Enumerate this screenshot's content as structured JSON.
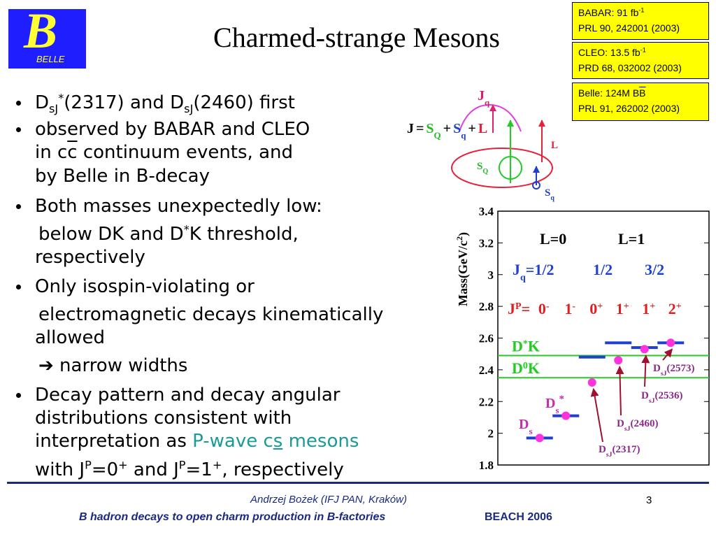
{
  "logo": {
    "letter": "B",
    "name": "BELLE"
  },
  "title": "Charmed-strange Mesons",
  "references": [
    {
      "line1": [
        "BABAR: 91 fb",
        "-1"
      ],
      "line2": "PRL 90, 242001 (2003)"
    },
    {
      "line1": [
        "CLEO: 13.5 fb",
        "-1"
      ],
      "line2": "PRD 68, 032002 (2003)"
    },
    {
      "line1": [
        "Belle: 124M B",
        "B"
      ],
      "line2": "PRL 91, 262002 (2003)"
    }
  ],
  "bullets": [
    [
      "D",
      "sJ",
      "*",
      "(2317) and D",
      "sJ",
      "(2460) first"
    ],
    [
      "observed by BABAR and CLEO"
    ],
    [
      "in c",
      "c",
      " continuum events, and"
    ],
    [
      "by Belle in B-decay"
    ],
    [
      "Both masses unexpectedly low:"
    ],
    [
      "below DK and D",
      "*",
      "K threshold,"
    ],
    [
      "respectively"
    ],
    [
      "Only isospin-violating or"
    ],
    [
      "electromagnetic decays kinematically"
    ],
    [
      "allowed"
    ],
    [
      "➔ narrow widths"
    ],
    [
      "Decay pattern and decay angular"
    ],
    [
      "distributions consistent with"
    ],
    [
      "interpretation as ",
      "P-wave c",
      "s",
      " mesons"
    ],
    [
      "with J",
      "P",
      "=0",
      "+",
      " and J",
      "P",
      "=1",
      "+",
      ", respectively"
    ]
  ],
  "spin_diagram": {
    "jq": [
      "J",
      "q"
    ],
    "equation": [
      "J",
      "=",
      "S",
      "Q",
      "+",
      "S",
      "q",
      "+",
      "L"
    ],
    "l": "L",
    "sQ": [
      "S",
      "Q"
    ],
    "sq": [
      "S",
      "q"
    ]
  },
  "chart_data": {
    "type": "level",
    "ylabel": [
      "Mass(GeV/c",
      "2",
      ")"
    ],
    "ylim": [
      1.8,
      3.4
    ],
    "yticks": [
      1.8,
      2,
      2.2,
      2.4,
      2.6,
      2.8,
      3,
      3.2,
      3.4
    ],
    "headers": {
      "l0": "L=0",
      "l1": "L=1",
      "jq": [
        "J",
        "q",
        "=1/2"
      ],
      "jq_1": "1/2",
      "jq_2": "3/2",
      "jp": [
        "J",
        "P",
        "="
      ]
    },
    "categories": [
      [
        "0",
        "-"
      ],
      [
        "1",
        "-"
      ],
      [
        "0",
        "+"
      ],
      [
        "1",
        "+"
      ],
      [
        "1",
        "+"
      ],
      [
        "2",
        "+"
      ]
    ],
    "levels": {
      "color": "#1f3fd0",
      "values": [
        1.97,
        2.11,
        2.48,
        2.57,
        2.54,
        2.57
      ]
    },
    "states": {
      "color": "#ff33dd",
      "values": [
        1.97,
        2.11,
        2.32,
        2.46,
        2.53,
        2.57
      ]
    },
    "state_labels": [
      [
        "D",
        "s"
      ],
      [
        "D",
        "s",
        "*"
      ],
      [
        "D",
        "sJ",
        "(2317)"
      ],
      [
        "D",
        "sJ",
        "(2460)"
      ],
      [
        "D",
        "sJ",
        "(2536)"
      ],
      [
        "D",
        "sJ",
        "(2573)"
      ]
    ],
    "thresholds": {
      "color": "#22cc22",
      "items": [
        {
          "label": [
            "D",
            "*",
            "K"
          ],
          "value": 2.49
        },
        {
          "label": [
            "D",
            "0",
            "K"
          ],
          "value": 2.35
        }
      ]
    }
  },
  "footer": {
    "author": "Andrzej Bożek (IFJ PAN, Kraków)",
    "talk": "B hadron decays to open charm production in B-factories",
    "conference": "BEACH 2006",
    "page": "3"
  }
}
